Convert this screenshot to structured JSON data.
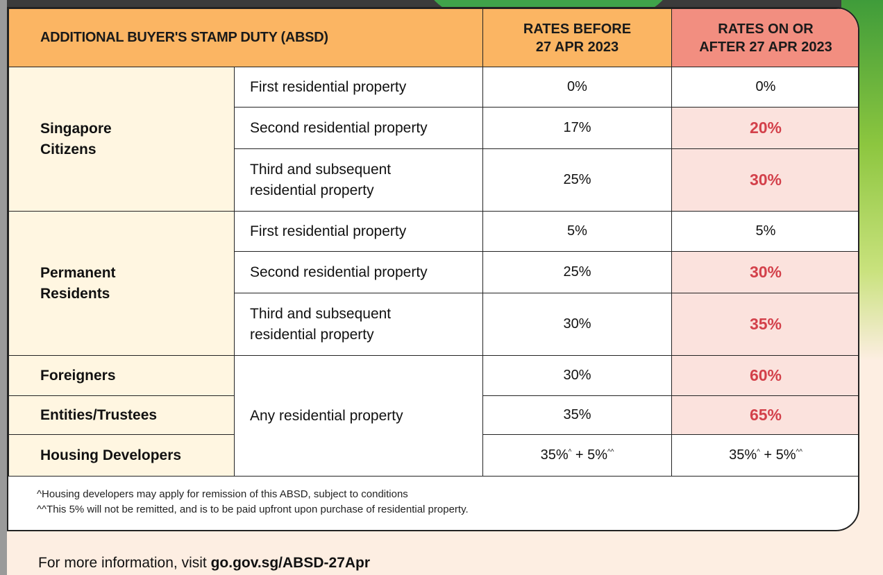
{
  "header": {
    "title": "ADDITIONAL BUYER'S STAMP DUTY (ABSD)",
    "before_line1": "RATES BEFORE",
    "before_line2": "27 APR 2023",
    "after_line1": "RATES ON OR",
    "after_line2": "AFTER 27 APR 2023"
  },
  "groups": {
    "citizens": "Singapore Citizens",
    "pr": "Permanent Residents",
    "foreigners": "Foreigners",
    "entities": "Entities/Trustees",
    "developers": "Housing Developers"
  },
  "props": {
    "first": "First residential property",
    "second": "Second residential property",
    "third": "Third and subsequent residential property",
    "any": "Any residential property"
  },
  "rows": {
    "sc_first": {
      "before": "0%",
      "after": "0%"
    },
    "sc_second": {
      "before": "17%",
      "after": "20%"
    },
    "sc_third": {
      "before": "25%",
      "after": "30%"
    },
    "pr_first": {
      "before": "5%",
      "after": "5%"
    },
    "pr_second": {
      "before": "25%",
      "after": "30%"
    },
    "pr_third": {
      "before": "30%",
      "after": "35%"
    },
    "foreigners": {
      "before": "30%",
      "after": "60%"
    },
    "entities": {
      "before": "35%",
      "after": "65%"
    },
    "developers": {
      "before_base": "35%",
      "before_base_mark": "^",
      "before_extra": " + 5%",
      "before_extra_mark": "^^",
      "after_base": "35%",
      "after_base_mark": "^",
      "after_extra": " + 5%",
      "after_extra_mark": "^^"
    }
  },
  "footnotes": {
    "note1": "^Housing developers may apply for remission of this ABSD, subject to conditions",
    "note2": "^^This 5% will not be remitted, and is to be paid upfront upon purchase of residential property."
  },
  "more_info": {
    "prefix": "For more information, visit ",
    "link": "go.gov.sg/ABSD-27Apr"
  },
  "colors": {
    "header_orange": "#fbb563",
    "header_red": "#f28e80",
    "highlight_bg": "#fbe2dd",
    "highlight_text": "#d3404a",
    "group_bg": "#fff6e1"
  }
}
